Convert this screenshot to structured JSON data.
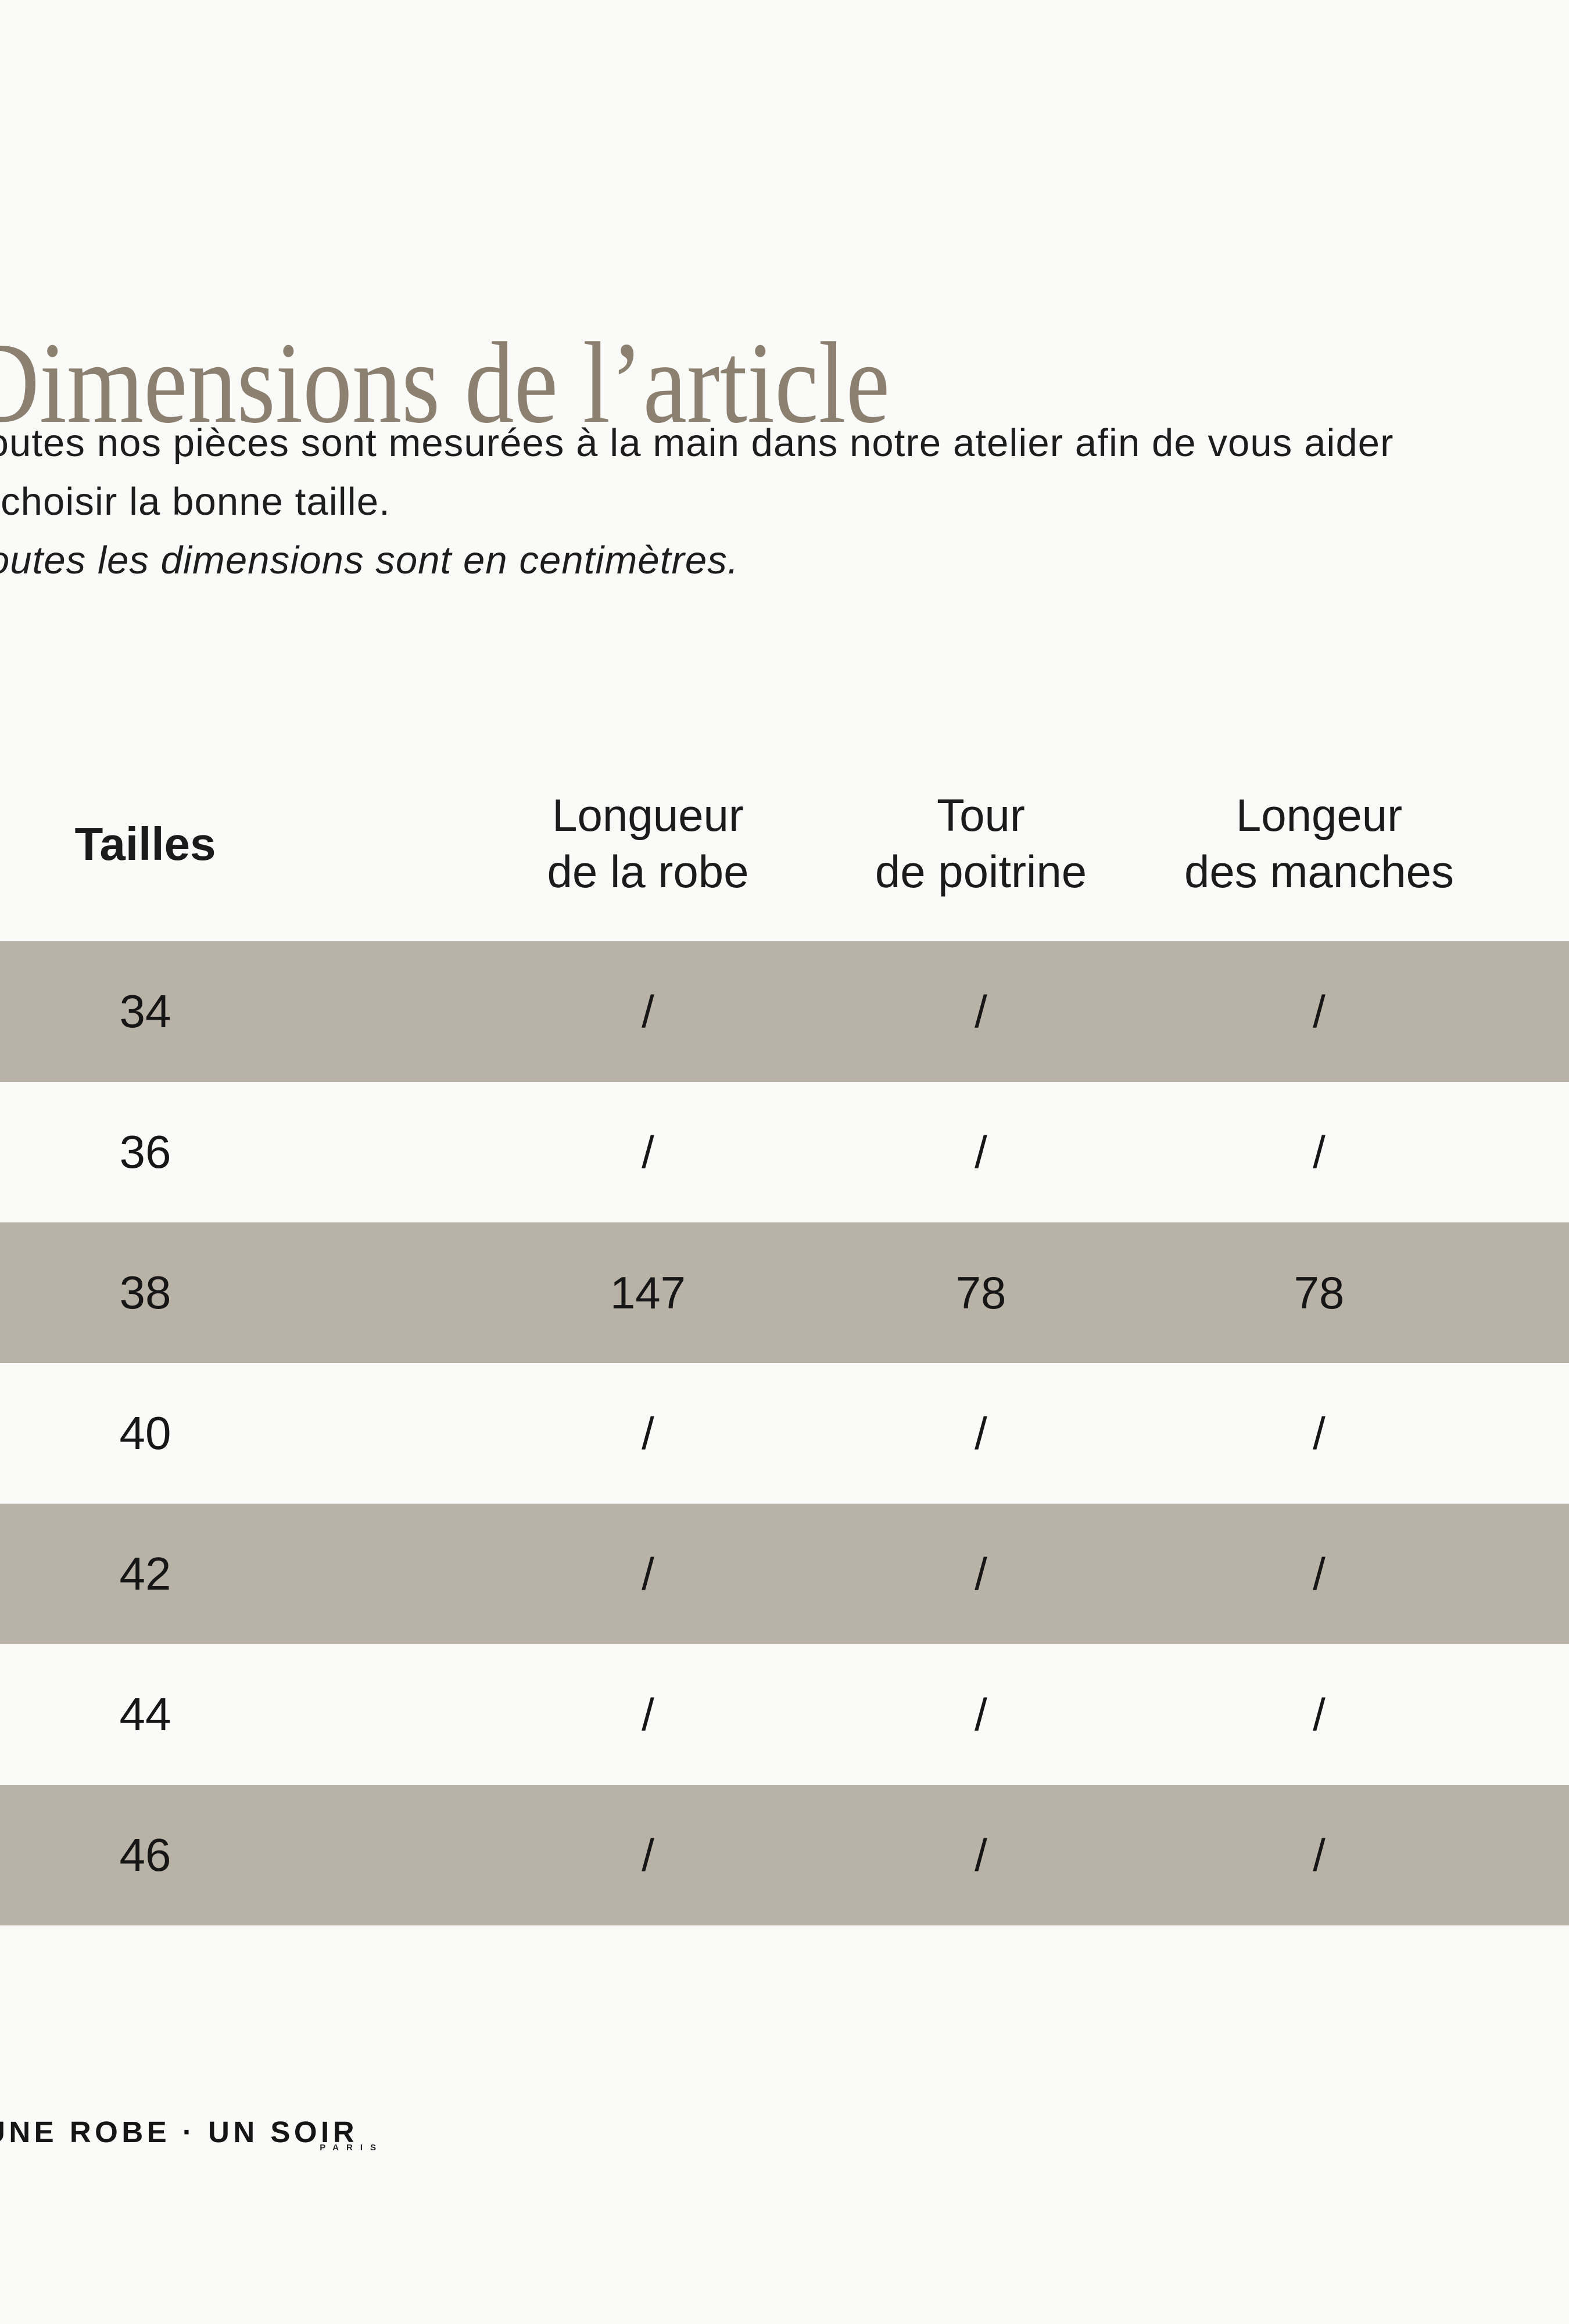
{
  "page": {
    "background": "#fafaf9",
    "text_color": "#1d1d1d"
  },
  "title": {
    "text": "Dimensions de l’article",
    "color": "#8c8071"
  },
  "intro": {
    "line1": "Toutes nos pièces sont mesurées à la main dans notre atelier afin de vous aider",
    "line2": "à choisir la bonne taille.",
    "note": "Toutes les dimensions sont en centimètres."
  },
  "table": {
    "row_shade_color": "#b9b2a6",
    "columns": [
      {
        "line1": "Tailles"
      },
      {
        "line1": "Longueur",
        "line2": "de la robe"
      },
      {
        "line1": "Tour",
        "line2": "de poitrine"
      },
      {
        "line1": "Longeur",
        "line2": "des manches"
      }
    ],
    "rows": [
      {
        "size": "34",
        "values": [
          "/",
          "/",
          "/"
        ]
      },
      {
        "size": "36",
        "values": [
          "/",
          "/",
          "/"
        ]
      },
      {
        "size": "38",
        "values": [
          "147",
          "78",
          "78"
        ]
      },
      {
        "size": "40",
        "values": [
          "/",
          "/",
          "/"
        ]
      },
      {
        "size": "42",
        "values": [
          "/",
          "/",
          "/"
        ]
      },
      {
        "size": "44",
        "values": [
          "/",
          "/",
          "/"
        ]
      },
      {
        "size": "46",
        "values": [
          "/",
          "/",
          "/"
        ]
      }
    ]
  },
  "footer": {
    "brand": "UNE ROBE · UN SOIR",
    "city": "PARIS"
  }
}
